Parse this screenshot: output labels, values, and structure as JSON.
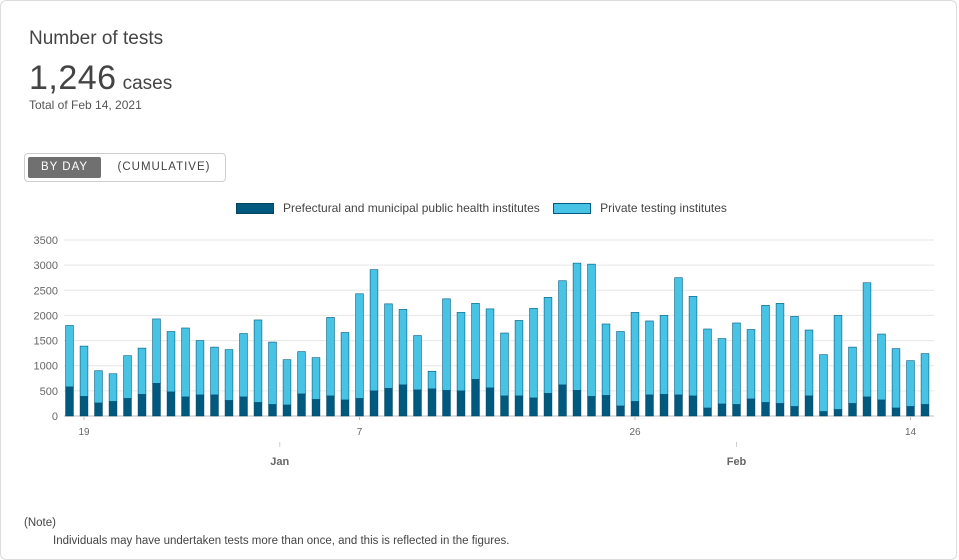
{
  "header": {
    "title": "Number of tests",
    "value": "1,246",
    "unit": "cases",
    "date_text": "Total of Feb 14, 2021"
  },
  "toggle": {
    "by_day": "BY DAY",
    "cumulative": "(CUMULATIVE)"
  },
  "colors": {
    "public": "#005a7f",
    "private": "#47c4e5",
    "grid": "#e6e6e6",
    "axis_text": "#808080"
  },
  "note": {
    "heading": "(Note)",
    "text": "Individuals may have undertaken tests more than once, and this is reflected in the figures."
  },
  "chart_data": {
    "type": "bar",
    "stacked": true,
    "ylim": [
      0,
      3500
    ],
    "yticks": [
      0,
      500,
      1000,
      1500,
      2000,
      2500,
      3000,
      3500
    ],
    "grid": true,
    "legend_position": "top-center",
    "x_day_labels": [
      {
        "index": 1,
        "label": "19"
      },
      {
        "index": 20,
        "label": "7"
      },
      {
        "index": 39,
        "label": "26"
      },
      {
        "index": 58,
        "label": "14"
      }
    ],
    "x_month_labels": [
      {
        "index": 14.5,
        "label": "Jan"
      },
      {
        "index": 46,
        "label": "Feb"
      }
    ],
    "series": [
      {
        "name": "Prefectural and municipal public health institutes",
        "values": [
          580,
          390,
          260,
          290,
          350,
          430,
          650,
          480,
          380,
          420,
          420,
          310,
          380,
          270,
          230,
          220,
          440,
          330,
          400,
          320,
          350,
          500,
          550,
          620,
          520,
          540,
          510,
          500,
          730,
          560,
          400,
          400,
          360,
          450,
          620,
          510,
          390,
          410,
          200,
          290,
          420,
          430,
          420,
          400,
          160,
          240,
          230,
          340,
          270,
          250,
          190,
          400,
          90,
          130,
          250,
          380,
          320,
          160,
          190,
          230
        ]
      },
      {
        "name": "Private testing institutes",
        "values": [
          1220,
          1000,
          640,
          550,
          850,
          920,
          1280,
          1200,
          1370,
          1080,
          950,
          1010,
          1260,
          1640,
          1240,
          900,
          840,
          830,
          1560,
          1340,
          2080,
          2410,
          1680,
          1500,
          1080,
          350,
          1820,
          1560,
          1510,
          1570,
          1250,
          1500,
          1780,
          1910,
          2070,
          2530,
          2630,
          1420,
          1480,
          1770,
          1470,
          1570,
          2330,
          1980,
          1570,
          1300,
          1620,
          1380,
          1930,
          1990,
          1790,
          1310,
          1130,
          1870,
          1120,
          2270,
          1310,
          1180,
          910,
          1010
        ]
      }
    ]
  }
}
